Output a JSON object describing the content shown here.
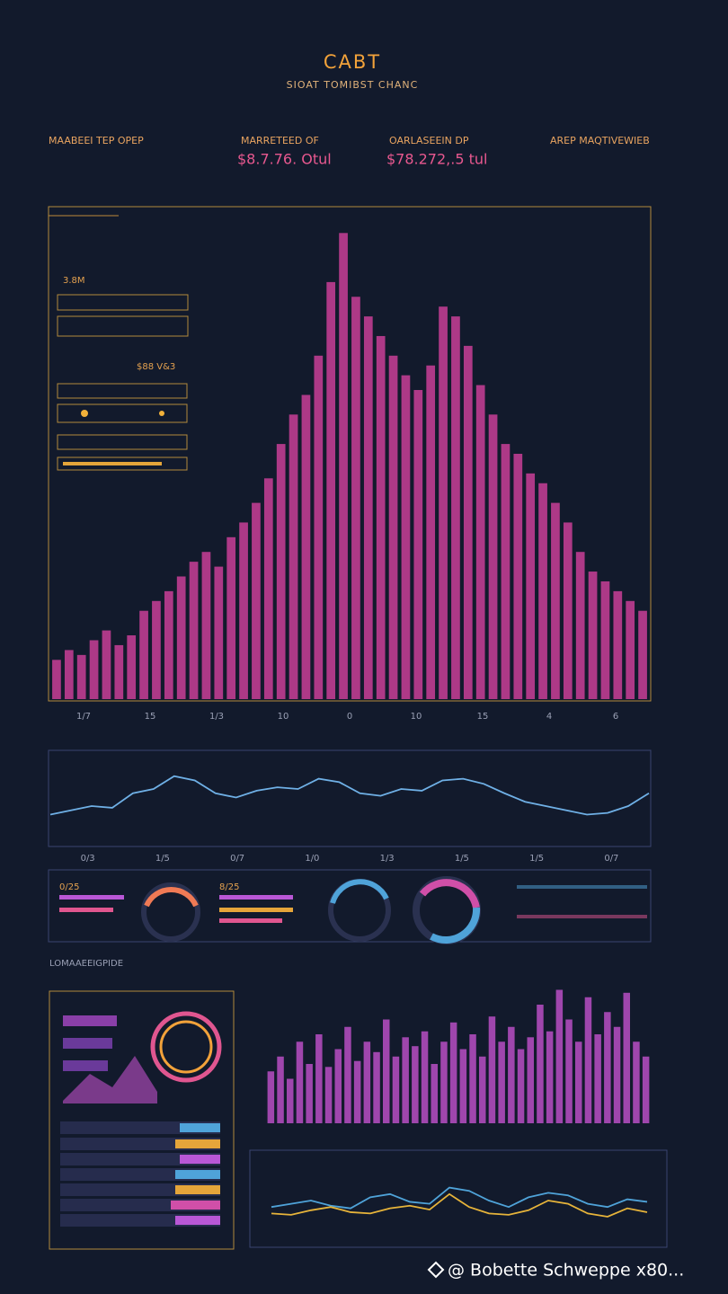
{
  "header": {
    "title": "CABT",
    "subtitle": "SIOAT TOMIBST CHANC"
  },
  "stats": [
    {
      "label": "MAABEEI TEP OPEP"
    },
    {
      "label": "MARRETEED OF",
      "value": "$8.7.76. Otul"
    },
    {
      "label": "OARLASEEIN DP",
      "value": "$78.272,.5 tul"
    },
    {
      "label": "AREP MAQTIVEWIEB"
    }
  ],
  "side_labels": [
    "3.8M",
    "$88 V&3"
  ],
  "widgets": [
    "0/25",
    "8/25"
  ],
  "section_label": "LOMAAEEIGPIDE",
  "chart_data": [
    {
      "type": "bar",
      "color": "#c93f98",
      "ylim": [
        0,
        100
      ],
      "values": [
        8,
        10,
        9,
        12,
        14,
        11,
        13,
        18,
        20,
        22,
        25,
        28,
        30,
        27,
        33,
        36,
        40,
        45,
        52,
        58,
        62,
        70,
        85,
        95,
        82,
        78,
        74,
        70,
        66,
        63,
        68,
        80,
        78,
        72,
        64,
        58,
        52,
        50,
        46,
        44,
        40,
        36,
        30,
        26,
        24,
        22,
        20,
        18
      ],
      "tick_labels": [
        "1/7",
        "15",
        "1/3",
        "10",
        "0",
        "10",
        "15",
        "4",
        "6"
      ]
    },
    {
      "type": "line",
      "ylim": [
        0,
        100
      ],
      "series": [
        {
          "color": "#6fb0e6",
          "values": [
            30,
            35,
            40,
            38,
            55,
            60,
            75,
            70,
            55,
            50,
            58,
            62,
            60,
            72,
            68,
            55,
            52,
            60,
            58,
            70,
            72,
            66,
            55,
            45,
            40,
            35,
            30,
            32,
            40,
            55
          ]
        }
      ],
      "tick_labels": [
        "0/3",
        "1/5",
        "0/7",
        "1/0",
        "1/3",
        "1/5",
        "1/5",
        "0/7"
      ]
    },
    {
      "type": "bar",
      "color": "#b94fc4",
      "ylim": [
        0,
        100
      ],
      "values": [
        35,
        45,
        30,
        55,
        40,
        60,
        38,
        50,
        65,
        42,
        55,
        48,
        70,
        45,
        58,
        52,
        62,
        40,
        55,
        68,
        50,
        60,
        45,
        72,
        55,
        65,
        50,
        58,
        80,
        62,
        90,
        70,
        55,
        85,
        60,
        75,
        65,
        88,
        55,
        45
      ]
    },
    {
      "type": "line",
      "ylim": [
        0,
        100
      ],
      "series": [
        {
          "color": "#4fa3d9",
          "values": [
            40,
            45,
            50,
            42,
            38,
            55,
            60,
            48,
            45,
            70,
            65,
            50,
            40,
            55,
            62,
            58,
            45,
            40,
            52,
            48
          ]
        },
        {
          "color": "#e7b43a",
          "values": [
            30,
            28,
            35,
            40,
            32,
            30,
            38,
            42,
            36,
            60,
            40,
            30,
            28,
            35,
            50,
            45,
            30,
            25,
            38,
            32
          ]
        }
      ]
    }
  ],
  "watermark": "@ Bobette Schweppe x80..."
}
